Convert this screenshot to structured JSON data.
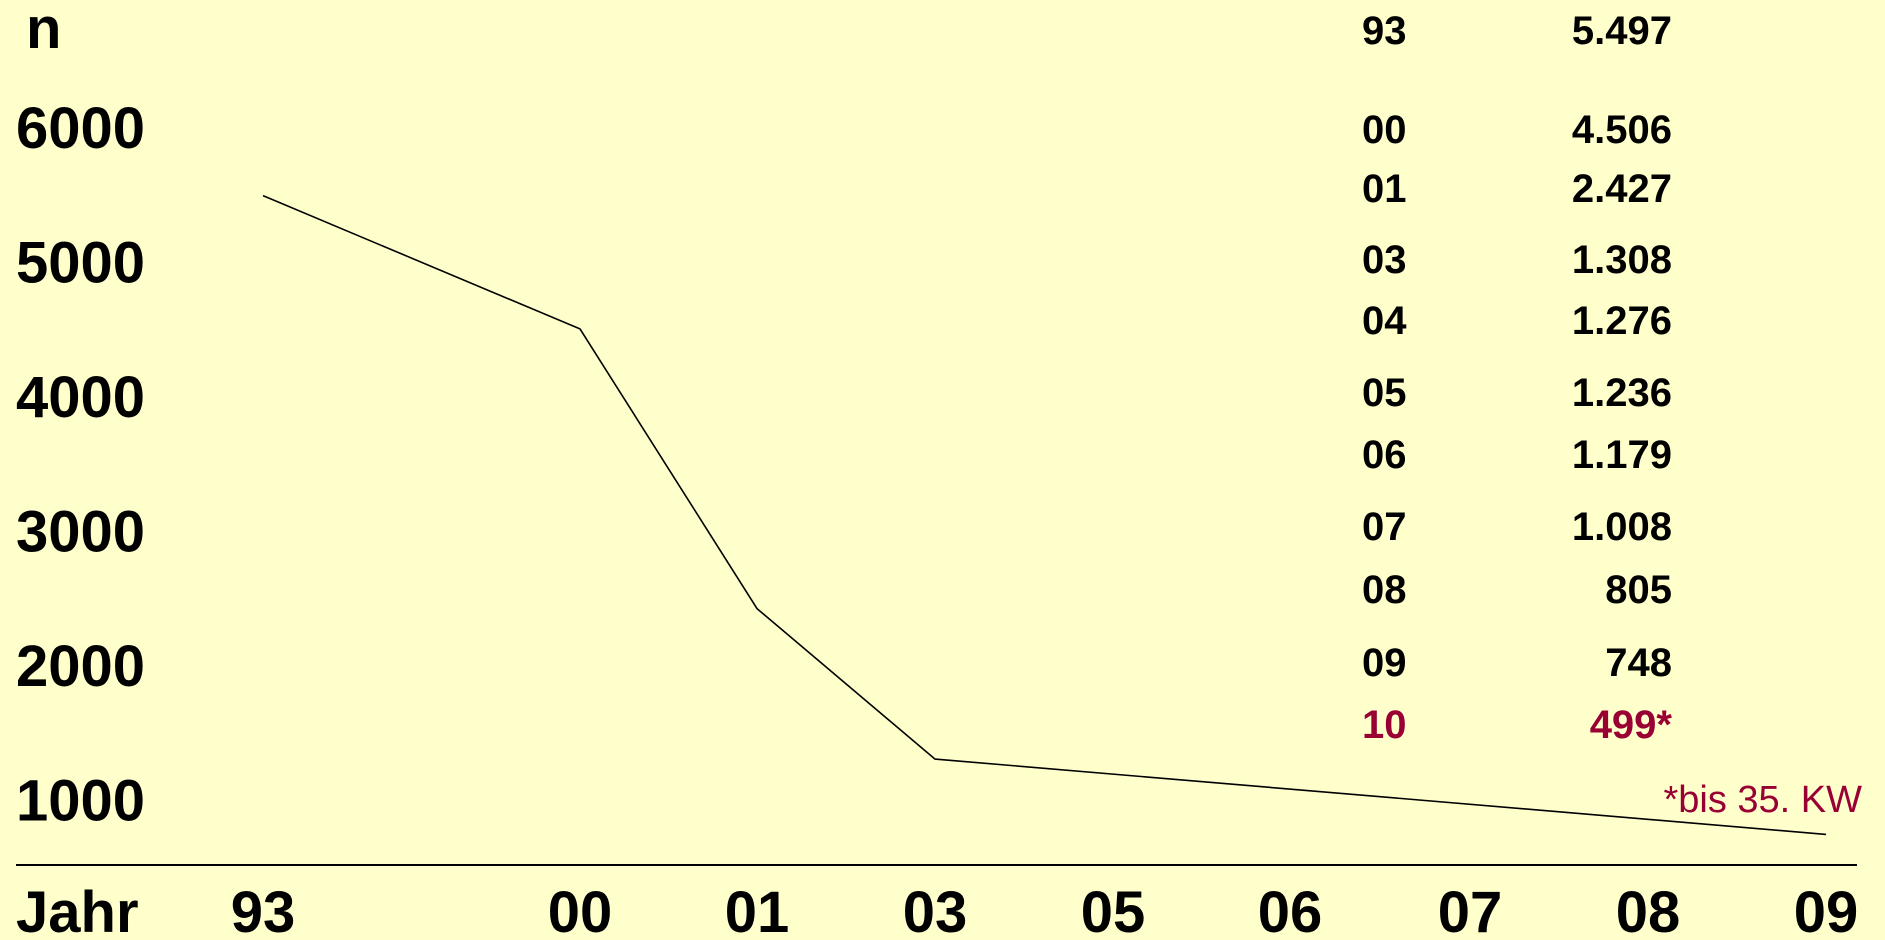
{
  "chart_data": {
    "type": "line",
    "ylabel": "n",
    "xlabel": "Jahr",
    "y_ticks": [
      "6000",
      "5000",
      "4000",
      "3000",
      "2000",
      "1000"
    ],
    "x_ticks": [
      "93",
      "00",
      "01",
      "03",
      "05",
      "06",
      "07",
      "08",
      "09"
    ],
    "ylim": [
      1000,
      6000
    ],
    "series": [
      {
        "x": [
          "93",
          "00",
          "01",
          "03",
          "09"
        ],
        "y": [
          5497,
          4506,
          2427,
          1308,
          748
        ]
      }
    ],
    "table": [
      {
        "year": "93",
        "value": "5.497"
      },
      {
        "year": "00",
        "value": "4.506"
      },
      {
        "year": "01",
        "value": "2.427"
      },
      {
        "year": "03",
        "value": "1.308"
      },
      {
        "year": "04",
        "value": "1.276"
      },
      {
        "year": "05",
        "value": "1.236"
      },
      {
        "year": "06",
        "value": "1.179"
      },
      {
        "year": "07",
        "value": "1.008"
      },
      {
        "year": "08",
        "value": "805"
      },
      {
        "year": "09",
        "value": "748"
      },
      {
        "year": "10",
        "value": "499*",
        "highlight": true
      }
    ],
    "footnote": "*bis 35. KW",
    "colors": {
      "background": "#ffffcc",
      "line": "#000000",
      "highlight": "#990033"
    }
  }
}
